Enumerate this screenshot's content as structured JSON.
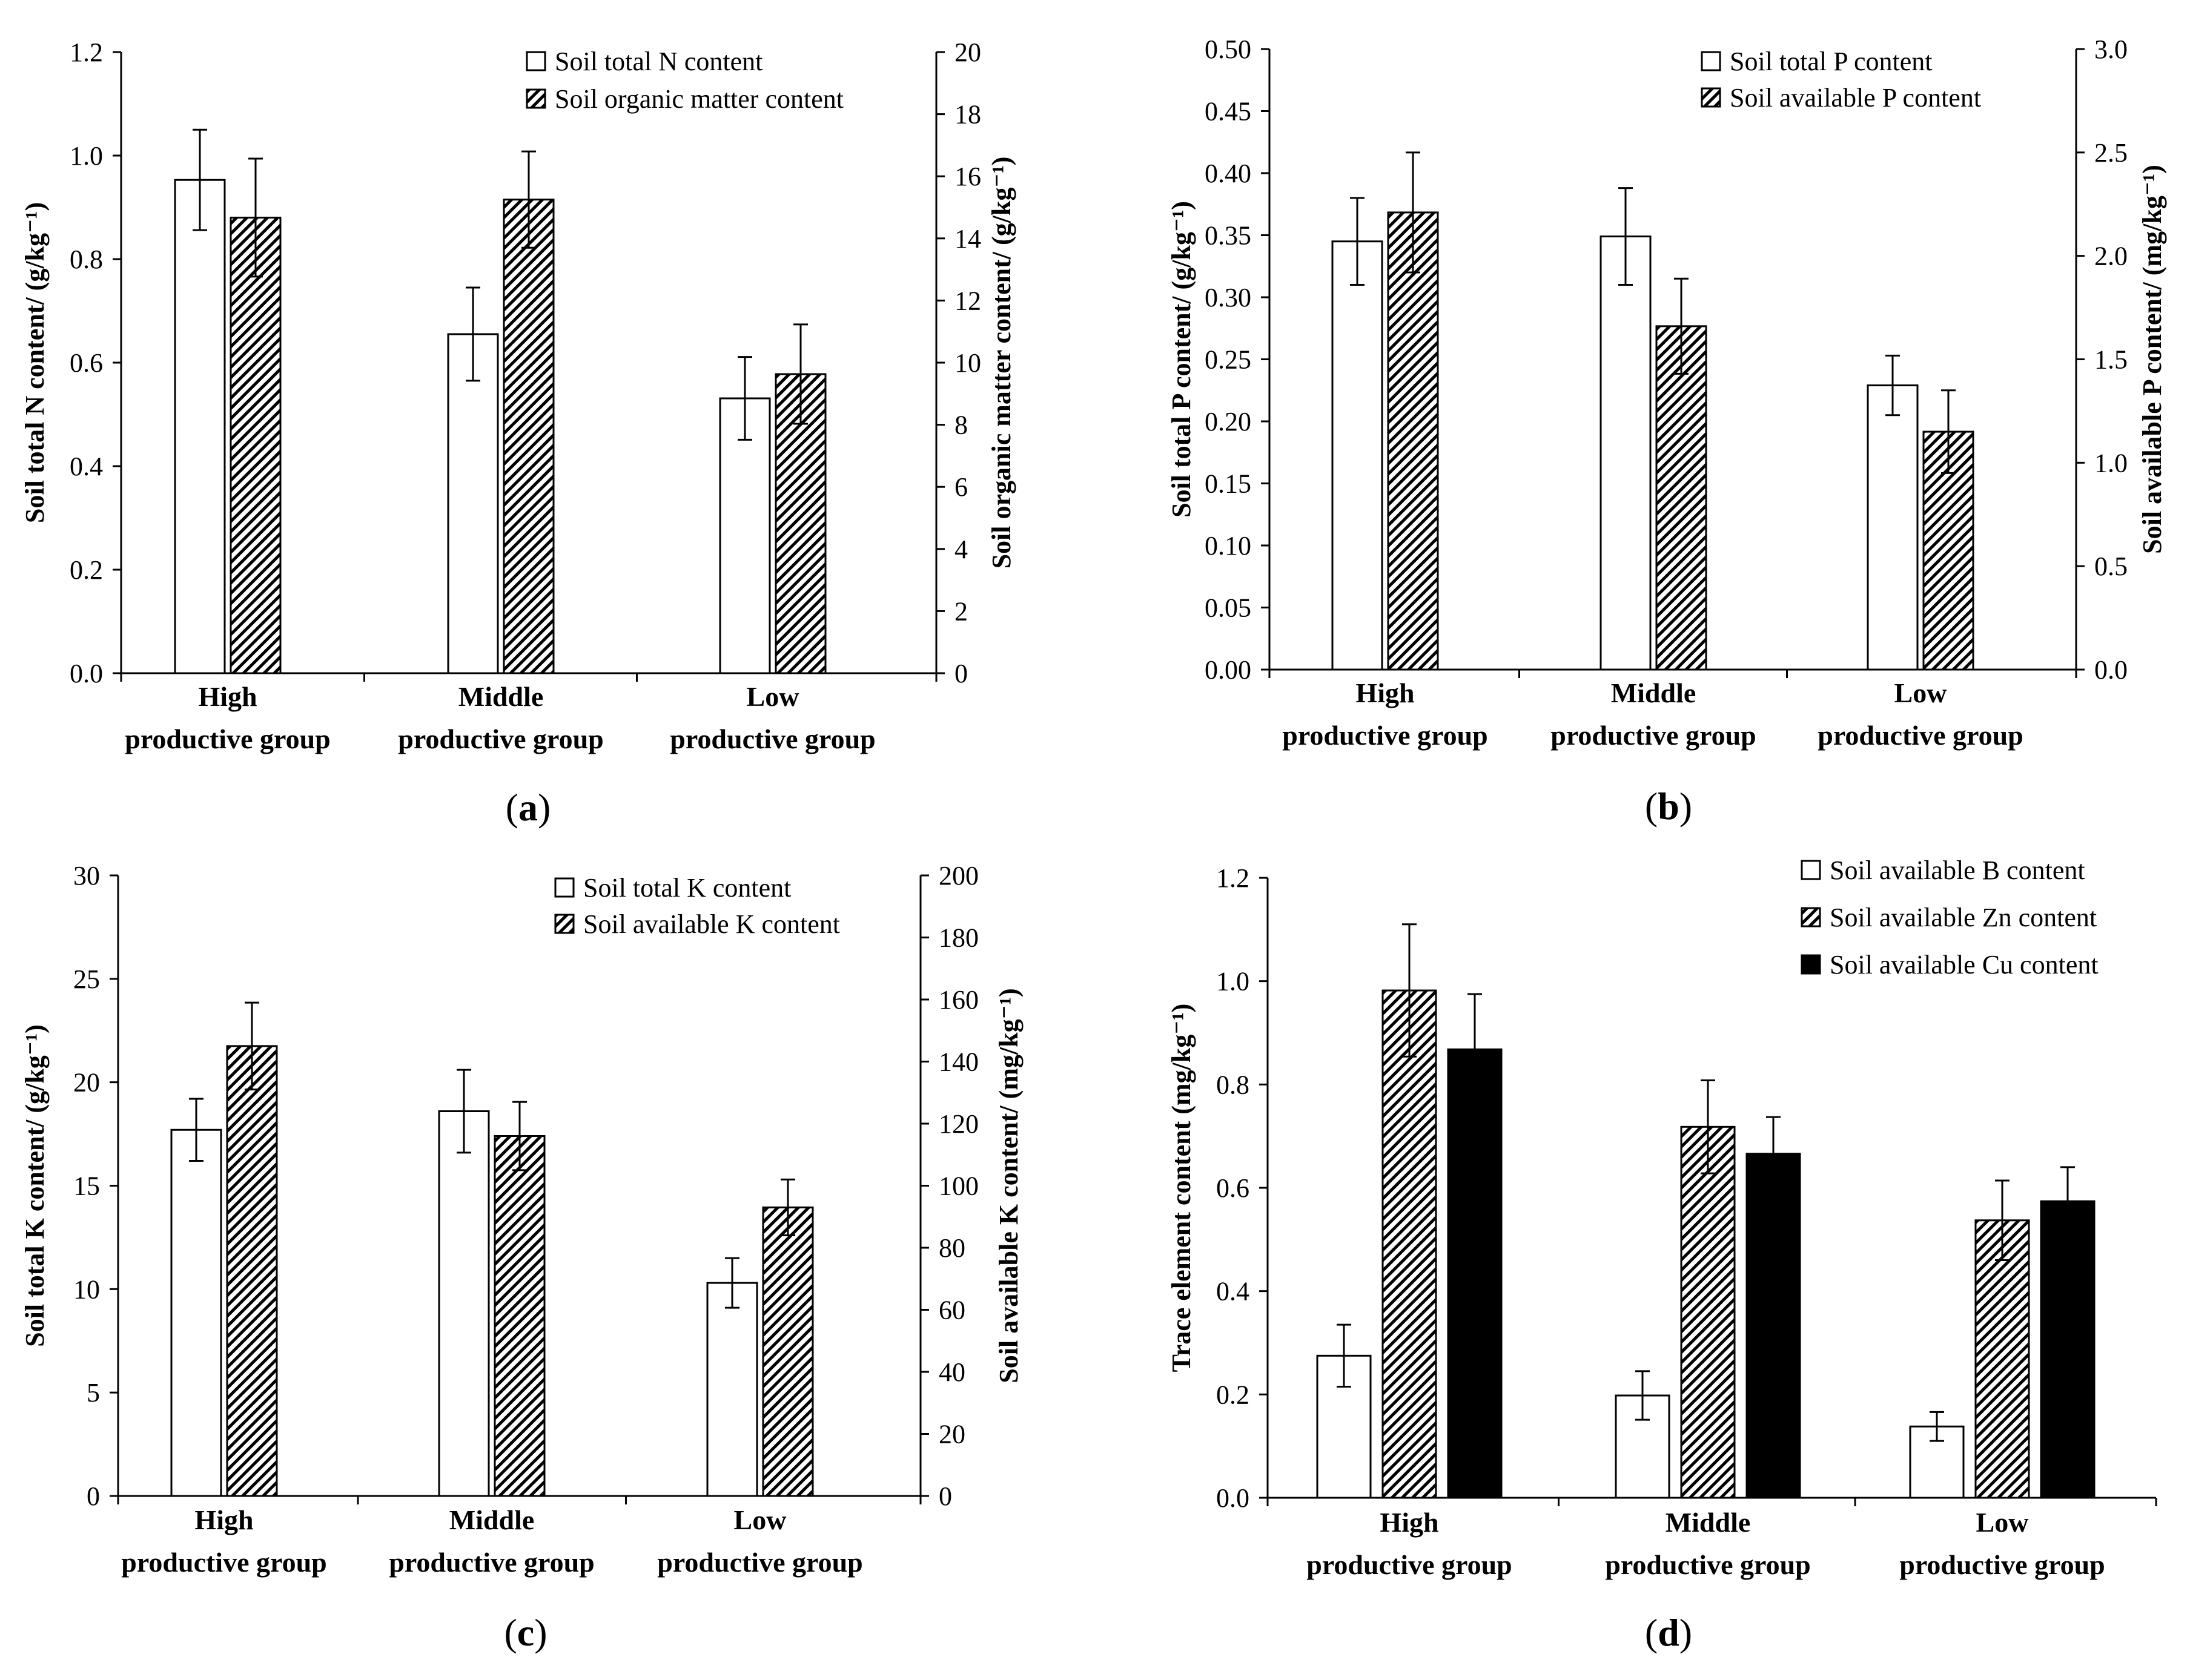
{
  "colors": {
    "axis": "#000000",
    "bar_open": "#ffffff",
    "bar_solid": "#000000",
    "hatch": "#000000"
  },
  "chart_data": [
    {
      "panel": "a",
      "type": "bar",
      "categories": [
        [
          "High",
          "productive group"
        ],
        [
          "Middle",
          "productive group"
        ],
        [
          "Low",
          "productive group"
        ]
      ],
      "series": [
        {
          "name": "Soil total N content",
          "axis": "left",
          "pattern": "open",
          "values": [
            0.953,
            0.655,
            0.531
          ],
          "errors": [
            0.097,
            0.09,
            0.08
          ]
        },
        {
          "name": "Soil organic matter content",
          "axis": "right",
          "pattern": "hatched",
          "values": [
            14.67,
            15.25,
            9.63
          ],
          "errors": [
            1.9,
            1.55,
            1.6
          ]
        }
      ],
      "ylabel": "Soil total N content/ (g/kg⁻¹)",
      "y2label": "Soil organic matter content/ (g/kg⁻¹)",
      "ylim": [
        0,
        1.2
      ],
      "y2lim": [
        0,
        20
      ],
      "yticks": [
        "0.0",
        "0.2",
        "0.4",
        "0.6",
        "0.8",
        "1.0",
        "1.2"
      ],
      "y2ticks": [
        "0",
        "2",
        "4",
        "6",
        "8",
        "10",
        "12",
        "14",
        "16",
        "18",
        "20"
      ],
      "legend_position": "top-right",
      "label": {
        "open": "(",
        "letter": "a",
        "close": ")"
      }
    },
    {
      "panel": "b",
      "type": "bar",
      "categories": [
        [
          "High",
          "productive group"
        ],
        [
          "Middle",
          "productive group"
        ],
        [
          "Low",
          "productive group"
        ]
      ],
      "series": [
        {
          "name": "Soil total P content",
          "axis": "left",
          "pattern": "open",
          "values": [
            0.345,
            0.349,
            0.229
          ],
          "errors": [
            0.035,
            0.039,
            0.024
          ]
        },
        {
          "name": "Soil available P content",
          "axis": "right",
          "pattern": "hatched",
          "values": [
            2.21,
            1.66,
            1.15
          ],
          "errors": [
            0.29,
            0.23,
            0.2
          ]
        }
      ],
      "ylabel": "Soil total P content/ (g/kg⁻¹)",
      "y2label": "Soil available P content/ (mg/kg⁻¹)",
      "ylim": [
        0,
        0.5
      ],
      "y2lim": [
        0,
        3.0
      ],
      "yticks": [
        "0.00",
        "0.05",
        "0.10",
        "0.15",
        "0.20",
        "0.25",
        "0.30",
        "0.35",
        "0.40",
        "0.45",
        "0.50"
      ],
      "y2ticks": [
        "0.0",
        "0.5",
        "1.0",
        "1.5",
        "2.0",
        "2.5",
        "3.0"
      ],
      "legend_position": "top-right",
      "label": {
        "open": "(",
        "letter": "b",
        "close": ")"
      }
    },
    {
      "panel": "c",
      "type": "bar",
      "categories": [
        [
          "High",
          "productive group"
        ],
        [
          "Middle",
          "productive group"
        ],
        [
          "Low",
          "productive group"
        ]
      ],
      "series": [
        {
          "name": "Soil total K content",
          "axis": "left",
          "pattern": "open",
          "values": [
            17.7,
            18.6,
            10.3
          ],
          "errors": [
            1.5,
            2.0,
            1.2
          ]
        },
        {
          "name": "Soil available K content",
          "axis": "right",
          "pattern": "hatched",
          "values": [
            145,
            116,
            93
          ],
          "errors": [
            14,
            11,
            9
          ]
        }
      ],
      "ylabel": "Soil total K content/ (g/kg⁻¹)",
      "y2label": "Soil available K content/ (mg/kg⁻¹)",
      "ylim": [
        0,
        30
      ],
      "y2lim": [
        0,
        200
      ],
      "yticks": [
        "0",
        "5",
        "10",
        "15",
        "20",
        "25",
        "30"
      ],
      "y2ticks": [
        "0",
        "20",
        "40",
        "60",
        "80",
        "100",
        "120",
        "140",
        "160",
        "180",
        "200"
      ],
      "legend_position": "top-right",
      "label": {
        "open": "(",
        "letter": "c",
        "close": ")"
      }
    },
    {
      "panel": "d",
      "type": "bar",
      "categories": [
        [
          "High",
          "productive group"
        ],
        [
          "Middle",
          "productive group"
        ],
        [
          "Low",
          "productive group"
        ]
      ],
      "series": [
        {
          "name": "Soil available B content",
          "axis": "left",
          "pattern": "open",
          "values": [
            0.275,
            0.198,
            0.138
          ],
          "errors": [
            0.06,
            0.047,
            0.028
          ]
        },
        {
          "name": "Soil available Zn content",
          "axis": "left",
          "pattern": "hatched",
          "values": [
            0.982,
            0.718,
            0.537
          ],
          "errors": [
            0.128,
            0.09,
            0.077
          ]
        },
        {
          "name": "Soil available Cu content",
          "axis": "left",
          "pattern": "solid",
          "values": [
            0.868,
            0.666,
            0.574
          ],
          "errors": [
            0.107,
            0.071,
            0.066
          ]
        }
      ],
      "ylabel": "Trace element content (mg/kg⁻¹)",
      "ylim": [
        0,
        1.2
      ],
      "yticks": [
        "0.0",
        "0.2",
        "0.4",
        "0.6",
        "0.8",
        "1.0",
        "1.2"
      ],
      "legend_position": "top-right",
      "label": {
        "open": "(",
        "letter": "d",
        "close": ")"
      }
    }
  ]
}
